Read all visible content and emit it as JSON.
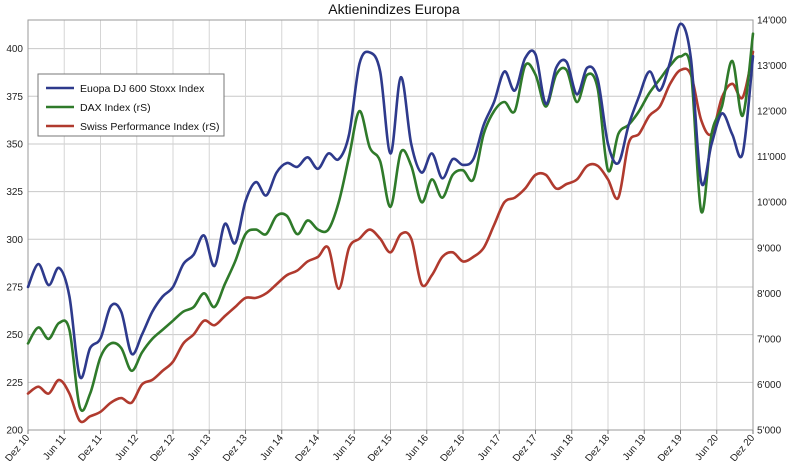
{
  "chart_data": {
    "type": "line",
    "title": "Aktienindizes Europa",
    "xlabel": "",
    "ylabel": "",
    "y_left": {
      "min": 200,
      "max": 415,
      "ticks": [
        200,
        225,
        250,
        275,
        300,
        325,
        350,
        375,
        400
      ]
    },
    "y_right": {
      "min": 5000,
      "max": 14000,
      "ticks": [
        "5'000",
        "6'000",
        "7'000",
        "8'000",
        "9'000",
        "10'000",
        "11'000",
        "12'000",
        "13'000",
        "14'000"
      ]
    },
    "x_ticks": [
      "Dez 10",
      "Jun 11",
      "Dez 11",
      "Jun 12",
      "Dez 12",
      "Jun 13",
      "Dez 13",
      "Jun 14",
      "Dez 14",
      "Jun 15",
      "Dez 15",
      "Jun 16",
      "Dez 16",
      "Jun 17",
      "Dez 17",
      "Jun 18",
      "Dez 18",
      "Jun 19",
      "Dez 19",
      "Jun 20",
      "Dez 20"
    ],
    "grid": true,
    "legend": "top-left",
    "series": [
      {
        "name": "Euopa DJ 600 Stoxx Index",
        "axis": "left",
        "color": "#2e3a8c",
        "points": [
          [
            0,
            275
          ],
          [
            1,
            287
          ],
          [
            2,
            276
          ],
          [
            3,
            285
          ],
          [
            4,
            270
          ],
          [
            5,
            228
          ],
          [
            6,
            243
          ],
          [
            7,
            248
          ],
          [
            8,
            265
          ],
          [
            9,
            262
          ],
          [
            10,
            240
          ],
          [
            11,
            250
          ],
          [
            12,
            262
          ],
          [
            13,
            270
          ],
          [
            14,
            275
          ],
          [
            15,
            287
          ],
          [
            16,
            292
          ],
          [
            17,
            302
          ],
          [
            18,
            286
          ],
          [
            19,
            308
          ],
          [
            20,
            298
          ],
          [
            21,
            320
          ],
          [
            22,
            330
          ],
          [
            23,
            323
          ],
          [
            24,
            335
          ],
          [
            25,
            340
          ],
          [
            26,
            338
          ],
          [
            27,
            343
          ],
          [
            28,
            337
          ],
          [
            29,
            345
          ],
          [
            30,
            342
          ],
          [
            31,
            355
          ],
          [
            32,
            392
          ],
          [
            33,
            398
          ],
          [
            34,
            388
          ],
          [
            35,
            345
          ],
          [
            36,
            385
          ],
          [
            37,
            350
          ],
          [
            38,
            335
          ],
          [
            39,
            345
          ],
          [
            40,
            332
          ],
          [
            41,
            342
          ],
          [
            42,
            339
          ],
          [
            43,
            342
          ],
          [
            44,
            360
          ],
          [
            45,
            372
          ],
          [
            46,
            388
          ],
          [
            47,
            378
          ],
          [
            48,
            395
          ],
          [
            49,
            397
          ],
          [
            50,
            371
          ],
          [
            51,
            390
          ],
          [
            52,
            393
          ],
          [
            53,
            376
          ],
          [
            54,
            390
          ],
          [
            55,
            384
          ],
          [
            56,
            350
          ],
          [
            57,
            340
          ],
          [
            58,
            360
          ],
          [
            59,
            375
          ],
          [
            60,
            388
          ],
          [
            61,
            378
          ],
          [
            62,
            393
          ],
          [
            63,
            413
          ],
          [
            64,
            395
          ],
          [
            65,
            330
          ],
          [
            66,
            350
          ],
          [
            67,
            366
          ],
          [
            68,
            355
          ],
          [
            69,
            345
          ],
          [
            70,
            396
          ]
        ]
      },
      {
        "name": "DAX Index (rS)",
        "axis": "right",
        "color": "#2f7a2a",
        "points": [
          [
            0,
            6900
          ],
          [
            1,
            7250
          ],
          [
            2,
            7000
          ],
          [
            3,
            7350
          ],
          [
            4,
            7200
          ],
          [
            5,
            5500
          ],
          [
            6,
            5800
          ],
          [
            7,
            6600
          ],
          [
            8,
            6900
          ],
          [
            9,
            6800
          ],
          [
            10,
            6300
          ],
          [
            11,
            6700
          ],
          [
            12,
            7000
          ],
          [
            13,
            7200
          ],
          [
            14,
            7400
          ],
          [
            15,
            7600
          ],
          [
            16,
            7700
          ],
          [
            17,
            8000
          ],
          [
            18,
            7700
          ],
          [
            19,
            8200
          ],
          [
            20,
            8700
          ],
          [
            21,
            9300
          ],
          [
            22,
            9400
          ],
          [
            23,
            9300
          ],
          [
            24,
            9700
          ],
          [
            25,
            9700
          ],
          [
            26,
            9300
          ],
          [
            27,
            9600
          ],
          [
            28,
            9400
          ],
          [
            29,
            9400
          ],
          [
            30,
            10000
          ],
          [
            31,
            11000
          ],
          [
            32,
            12000
          ],
          [
            33,
            11200
          ],
          [
            34,
            10900
          ],
          [
            35,
            9900
          ],
          [
            36,
            11100
          ],
          [
            37,
            10800
          ],
          [
            38,
            10000
          ],
          [
            39,
            10500
          ],
          [
            40,
            10100
          ],
          [
            41,
            10600
          ],
          [
            42,
            10700
          ],
          [
            43,
            10500
          ],
          [
            44,
            11500
          ],
          [
            45,
            12000
          ],
          [
            46,
            12200
          ],
          [
            47,
            12000
          ],
          [
            48,
            13000
          ],
          [
            49,
            12800
          ],
          [
            50,
            12100
          ],
          [
            51,
            12800
          ],
          [
            52,
            12900
          ],
          [
            53,
            12200
          ],
          [
            54,
            12800
          ],
          [
            55,
            12500
          ],
          [
            56,
            10700
          ],
          [
            57,
            11500
          ],
          [
            58,
            11700
          ],
          [
            59,
            12000
          ],
          [
            60,
            12400
          ],
          [
            61,
            12700
          ],
          [
            62,
            13000
          ],
          [
            63,
            13200
          ],
          [
            64,
            12900
          ],
          [
            65,
            9800
          ],
          [
            66,
            11500
          ],
          [
            67,
            12100
          ],
          [
            68,
            13100
          ],
          [
            69,
            11900
          ],
          [
            70,
            13700
          ]
        ]
      },
      {
        "name": "Swiss Performance Index (rS)",
        "axis": "right",
        "color": "#b03a2e",
        "points": [
          [
            0,
            5800
          ],
          [
            1,
            5950
          ],
          [
            2,
            5800
          ],
          [
            3,
            6100
          ],
          [
            4,
            5800
          ],
          [
            5,
            5200
          ],
          [
            6,
            5300
          ],
          [
            7,
            5400
          ],
          [
            8,
            5600
          ],
          [
            9,
            5700
          ],
          [
            10,
            5600
          ],
          [
            11,
            6000
          ],
          [
            12,
            6100
          ],
          [
            13,
            6300
          ],
          [
            14,
            6500
          ],
          [
            15,
            6900
          ],
          [
            16,
            7100
          ],
          [
            17,
            7400
          ],
          [
            18,
            7300
          ],
          [
            19,
            7500
          ],
          [
            20,
            7700
          ],
          [
            21,
            7900
          ],
          [
            22,
            7900
          ],
          [
            23,
            8000
          ],
          [
            24,
            8200
          ],
          [
            25,
            8400
          ],
          [
            26,
            8500
          ],
          [
            27,
            8700
          ],
          [
            28,
            8800
          ],
          [
            29,
            9000
          ],
          [
            30,
            8100
          ],
          [
            31,
            9000
          ],
          [
            32,
            9200
          ],
          [
            33,
            9400
          ],
          [
            34,
            9200
          ],
          [
            35,
            8900
          ],
          [
            36,
            9300
          ],
          [
            37,
            9200
          ],
          [
            38,
            8200
          ],
          [
            39,
            8400
          ],
          [
            40,
            8800
          ],
          [
            41,
            8900
          ],
          [
            42,
            8700
          ],
          [
            43,
            8800
          ],
          [
            44,
            9000
          ],
          [
            45,
            9500
          ],
          [
            46,
            10000
          ],
          [
            47,
            10100
          ],
          [
            48,
            10300
          ],
          [
            49,
            10600
          ],
          [
            50,
            10600
          ],
          [
            51,
            10300
          ],
          [
            52,
            10400
          ],
          [
            53,
            10500
          ],
          [
            54,
            10800
          ],
          [
            55,
            10800
          ],
          [
            56,
            10500
          ],
          [
            57,
            10100
          ],
          [
            58,
            11300
          ],
          [
            59,
            11500
          ],
          [
            60,
            11900
          ],
          [
            61,
            12100
          ],
          [
            62,
            12600
          ],
          [
            63,
            12900
          ],
          [
            64,
            12800
          ],
          [
            65,
            11800
          ],
          [
            66,
            11500
          ],
          [
            67,
            12300
          ],
          [
            68,
            12600
          ],
          [
            69,
            12300
          ],
          [
            70,
            13300
          ]
        ]
      }
    ]
  }
}
